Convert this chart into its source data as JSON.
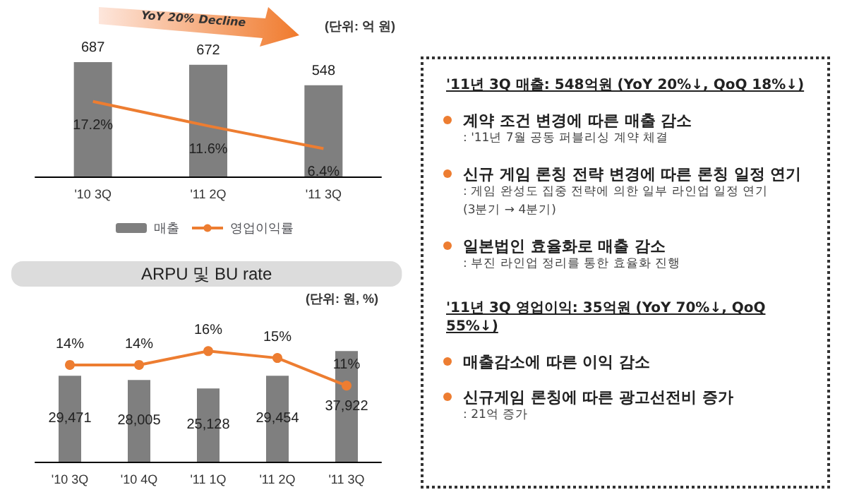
{
  "chart_data": [
    {
      "type": "bar",
      "categories": [
        "'10 3Q",
        "'11 2Q",
        "'11 3Q"
      ],
      "data_labels": true,
      "legend": "bottom",
      "tick_labels": "x",
      "grid": false,
      "annotations": [
        "YoY 20% Decline",
        "(단위: 억 원)"
      ],
      "series": [
        {
          "type": "bar",
          "name": "매출",
          "color": "#7f7f7f",
          "values": [
            687,
            672,
            548
          ]
        },
        {
          "type": "line",
          "name": "영업이익률",
          "color": "#ed7d31",
          "axis": "y2",
          "marker": "none",
          "values": [
            17.2,
            11.6,
            6.4
          ],
          "value_labels": [
            "17.2%",
            "11.6%",
            "6.4%"
          ]
        }
      ]
    },
    {
      "type": "bar",
      "title": "ARPU 및 BU rate",
      "categories": [
        "'10 3Q",
        "'10 4Q",
        "'11 1Q",
        "'11 2Q",
        "'11 3Q"
      ],
      "tick_labels": "x",
      "grid": false,
      "legend": false,
      "annotations": [
        "(단위: 원, %)"
      ],
      "series": [
        {
          "type": "bar",
          "color": "#7f7f7f",
          "values": [
            29471,
            28005,
            25128,
            29454,
            37922
          ],
          "value_labels": [
            "29,471",
            "28,005",
            "25,128",
            "29,454",
            "37,922"
          ]
        },
        {
          "type": "line",
          "color": "#ed7d31",
          "axis": "y2",
          "marker": "circle",
          "values": [
            14,
            14,
            16,
            15,
            11
          ],
          "value_labels": [
            "14%",
            "14%",
            "16%",
            "15%",
            "11%"
          ]
        }
      ]
    },
    {
      "type": "other",
      "annotations": [
        "'11년 3Q 매출:  548억원 (YoY  20%↓, QoQ  18%↓)",
        "계약 조건 변경에 따른 매출 감소",
        ": '11년 7월 공동 퍼블리싱 계약 체결",
        "신규 게임 론칭 전략 변경에 따른 론칭 일정 연기",
        ": 게임 완성도 집중 전략에 의한 일부 라인업 일정 연기",
        "(3분기 → 4분기)",
        "일본법인 효율화로 매출 감소",
        ":  부진 라인업 정리를 통한 효율화 진행",
        "'11년 3Q 영업이익:  35억원 (YoY  70%↓, QoQ  55%↓)",
        "매출감소에 따른 이익 감소",
        "신규게임 론칭에 따른 광고선전비 증가",
        ":  21억 증가"
      ]
    }
  ]
}
